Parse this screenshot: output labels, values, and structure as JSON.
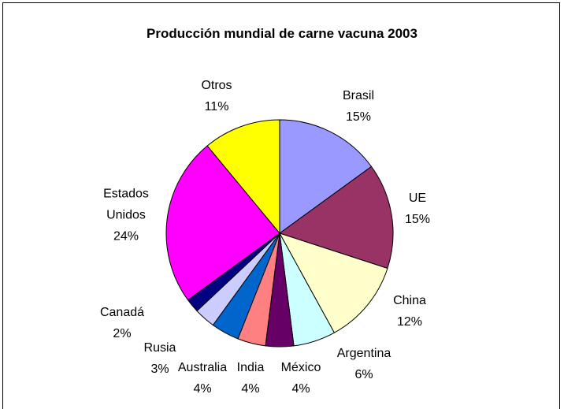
{
  "chart_data": {
    "type": "pie",
    "title": "Producción mundial de carne vacuna 2003",
    "categories": [
      "Brasil",
      "UE",
      "China",
      "Argentina",
      "México",
      "India",
      "Australia",
      "Rusia",
      "Canadá",
      "Estados Unidos",
      "Otros"
    ],
    "values": [
      15,
      15,
      12,
      6,
      4,
      4,
      4,
      3,
      2,
      24,
      11
    ],
    "value_labels": [
      "15%",
      "15%",
      "12%",
      "6%",
      "4%",
      "4%",
      "4%",
      "3%",
      "2%",
      "24%",
      "11%"
    ],
    "colors": [
      "#9999FF",
      "#993366",
      "#FFFFCC",
      "#CCFFFF",
      "#660066",
      "#FF8080",
      "#0066CC",
      "#CCCCFF",
      "#000080",
      "#FF00FF",
      "#FFFF00"
    ]
  }
}
